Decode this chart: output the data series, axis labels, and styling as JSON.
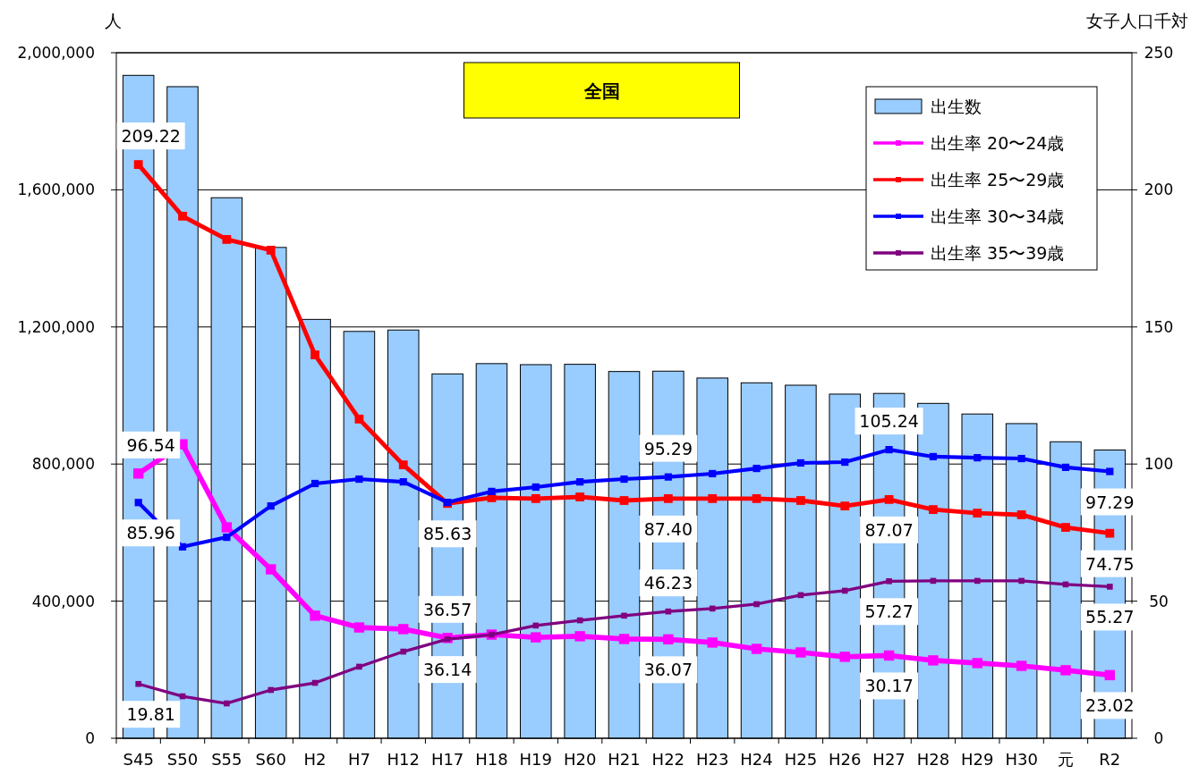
{
  "chart_data": {
    "type": "bar",
    "title": "全国",
    "ylabel": "人",
    "y2label": "女子人口千対",
    "categories": [
      "S45",
      "S50",
      "S55",
      "S60",
      "H2",
      "H7",
      "H12",
      "H17",
      "H18",
      "H19",
      "H20",
      "H21",
      "H22",
      "H23",
      "H24",
      "H25",
      "H26",
      "H27",
      "H28",
      "H29",
      "H30",
      "元",
      "R2"
    ],
    "ylim": [
      0,
      2000000
    ],
    "yticks": [
      {
        "value": 0,
        "label": "0"
      },
      {
        "value": 400000,
        "label": "400,000"
      },
      {
        "value": 800000,
        "label": "800,000"
      },
      {
        "value": 1200000,
        "label": "1,200,000"
      },
      {
        "value": 1600000,
        "label": "1,600,000"
      },
      {
        "value": 2000000,
        "label": "2,000,000"
      }
    ],
    "y2lim": [
      0,
      250
    ],
    "y2ticks": [
      0,
      50,
      100,
      150,
      200,
      250
    ],
    "grid": "y",
    "legend": "top right",
    "series": [
      {
        "name": "出生数",
        "color": "#99ccff",
        "values": [
          1934000,
          1901000,
          1577000,
          1432000,
          1222000,
          1187000,
          1191000,
          1063000,
          1093000,
          1090000,
          1091000,
          1070000,
          1071000,
          1051000,
          1037000,
          1030000,
          1004000,
          1006000,
          977000,
          946000,
          918000,
          865000,
          841000
        ]
      },
      {
        "name": "出生率 20〜24歳",
        "type": "line",
        "axis": "y2",
        "color": "#ff00ff",
        "marker": "square",
        "values": [
          96.54,
          107.2,
          76.9,
          61.6,
          44.7,
          40.4,
          39.8,
          36.57,
          37.8,
          36.8,
          37.2,
          36.2,
          36.07,
          34.9,
          32.6,
          31.3,
          29.7,
          30.17,
          28.4,
          27.4,
          26.4,
          24.8,
          23.02
        ],
        "value_labels": [
          "96.54",
          null,
          null,
          null,
          null,
          null,
          null,
          "36.57",
          null,
          null,
          null,
          null,
          "36.07",
          null,
          null,
          null,
          null,
          "30.17",
          null,
          null,
          null,
          null,
          "23.02"
        ]
      },
      {
        "name": "出生率 25〜29歳",
        "type": "line",
        "axis": "y2",
        "color": "#ff0000",
        "marker": "square",
        "values": [
          209.22,
          190.4,
          181.9,
          178.0,
          139.8,
          116.4,
          99.7,
          85.63,
          87.7,
          87.4,
          88.0,
          86.7,
          87.4,
          87.4,
          87.4,
          86.7,
          84.7,
          87.07,
          83.4,
          82.1,
          81.5,
          76.9,
          74.75
        ],
        "value_labels": [
          "209.22",
          null,
          null,
          null,
          null,
          null,
          null,
          "85.63",
          null,
          null,
          null,
          null,
          "87.40",
          null,
          null,
          null,
          null,
          "87.07",
          null,
          null,
          null,
          null,
          "74.75"
        ]
      },
      {
        "name": "出生率 30〜34歳",
        "type": "line",
        "axis": "y2",
        "color": "#0000ff",
        "marker": "square",
        "values": [
          85.96,
          69.8,
          73.3,
          84.7,
          92.9,
          94.5,
          93.5,
          86.0,
          90.0,
          91.6,
          93.5,
          94.5,
          95.29,
          96.5,
          98.4,
          100.4,
          100.7,
          105.24,
          102.7,
          102.3,
          102.0,
          98.8,
          97.29
        ],
        "value_labels": [
          "85.96",
          null,
          null,
          null,
          null,
          null,
          null,
          null,
          null,
          null,
          null,
          null,
          "95.29",
          null,
          null,
          null,
          null,
          "105.24",
          null,
          null,
          null,
          null,
          "97.29"
        ]
      },
      {
        "name": "出生率 35〜39歳",
        "type": "line",
        "axis": "y2",
        "color": "#800080",
        "marker": "square",
        "values": [
          19.81,
          15.3,
          12.7,
          17.6,
          20.2,
          26.1,
          31.6,
          36.14,
          37.8,
          41.1,
          43.0,
          44.7,
          46.23,
          47.3,
          48.9,
          52.2,
          53.8,
          57.27,
          57.4,
          57.4,
          57.4,
          56.1,
          55.27
        ],
        "value_labels": [
          "19.81",
          null,
          null,
          null,
          null,
          null,
          null,
          "36.14",
          null,
          null,
          null,
          null,
          "46.23",
          null,
          null,
          null,
          null,
          "57.27",
          null,
          null,
          null,
          null,
          "55.27"
        ]
      }
    ]
  }
}
